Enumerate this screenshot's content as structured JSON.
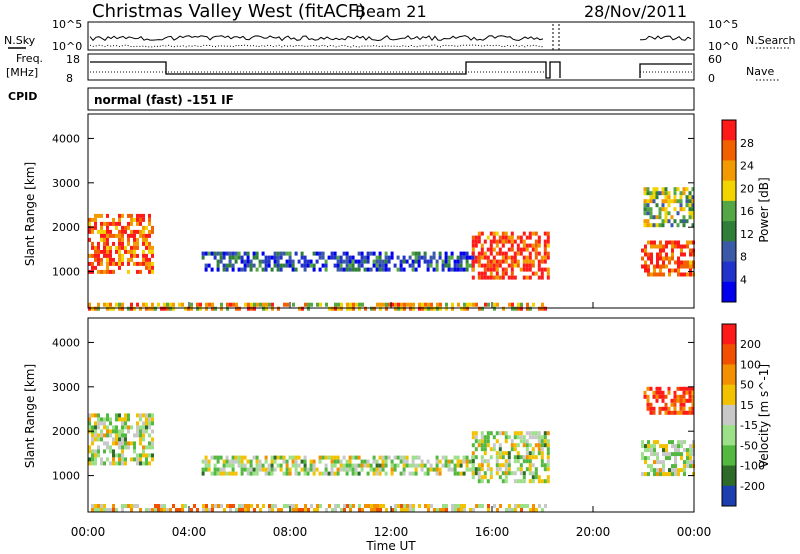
{
  "header": {
    "station": "Christmas Valley West (fitACF)",
    "beam": "Beam 21",
    "date": "28/Nov/2011"
  },
  "top_panels": {
    "nsky_label": "N.Sky",
    "nsky_ticks": [
      "10^5",
      "10^0"
    ],
    "nsearch_label": "N.Search",
    "nsearch_ticks": [
      "10^5",
      "10^0"
    ],
    "freq_label": "Freq.",
    "freq_unit": "[MHz]",
    "freq_ticks": [
      "18",
      "8"
    ],
    "nave_label": "Nave",
    "nave_ticks": [
      "60",
      "0"
    ],
    "cpid_label": "CPID",
    "cpid_text": "normal (fast) -151 IF"
  },
  "chart_data": [
    {
      "type": "heatmap",
      "name": "power",
      "ylabel": "Slant Range [km]",
      "yticks": [
        "4000",
        "3000",
        "2000",
        "1000"
      ],
      "ylim": [
        180,
        4550
      ],
      "xlim": [
        0,
        24
      ],
      "colorbar_label": "Power [dB]",
      "colorbar_ticks": [
        "28",
        "24",
        "20",
        "16",
        "12",
        "8",
        "4"
      ],
      "colors": [
        "#0000ee",
        "#2233cc",
        "#3a5aa8",
        "#2f7f3a",
        "#55a644",
        "#f2d400",
        "#f29a00",
        "#f26000",
        "#ff1a1a"
      ],
      "regions": [
        {
          "t0": 0.0,
          "t1": 18.1,
          "r0": 200,
          "r1": 300,
          "level": 0.7
        },
        {
          "t0": 0.0,
          "t1": 2.6,
          "r0": 1000,
          "r1": 2300,
          "level": 0.85
        },
        {
          "t0": 4.5,
          "t1": 15.3,
          "r0": 1050,
          "r1": 1450,
          "level": 0.25
        },
        {
          "t0": 15.2,
          "t1": 18.2,
          "r0": 850,
          "r1": 1900,
          "level": 0.9
        },
        {
          "t0": 21.9,
          "t1": 24.0,
          "r0": 900,
          "r1": 1700,
          "level": 0.9
        },
        {
          "t0": 22.0,
          "t1": 24.0,
          "r0": 2000,
          "r1": 2900,
          "level": 0.5
        }
      ]
    },
    {
      "type": "heatmap",
      "name": "velocity",
      "ylabel": "Slant Range [km]",
      "yticks": [
        "4000",
        "3000",
        "2000",
        "1000"
      ],
      "ylim": [
        180,
        4550
      ],
      "xlim": [
        0,
        24
      ],
      "colorbar_label": "Velocity [m s^-1]",
      "colorbar_ticks": [
        "200",
        "100",
        "50",
        "15",
        "-15",
        "-50",
        "-100",
        "-200"
      ],
      "colors": [
        "#1b3fb0",
        "#2e6a28",
        "#53b840",
        "#9de08a",
        "#c8c8c8",
        "#f2c200",
        "#f29000",
        "#f25000",
        "#ff1a1a"
      ],
      "regions": [
        {
          "t0": 0.0,
          "t1": 18.1,
          "r0": 200,
          "r1": 360,
          "level": 0.6
        },
        {
          "t0": 0.0,
          "t1": 2.6,
          "r0": 1300,
          "r1": 2400,
          "level": 0.45
        },
        {
          "t0": 4.5,
          "t1": 15.3,
          "r0": 1050,
          "r1": 1450,
          "level": 0.45
        },
        {
          "t0": 15.2,
          "t1": 18.2,
          "r0": 900,
          "r1": 2000,
          "level": 0.45
        },
        {
          "t0": 21.9,
          "t1": 24.0,
          "r0": 1000,
          "r1": 1800,
          "level": 0.45
        },
        {
          "t0": 22.0,
          "t1": 24.0,
          "r0": 2400,
          "r1": 3000,
          "level": 0.9
        }
      ]
    }
  ],
  "xaxis": {
    "ticks": [
      "00:00",
      "04:00",
      "08:00",
      "12:00",
      "16:00",
      "20:00",
      "00:00"
    ],
    "label": "Time UT"
  }
}
